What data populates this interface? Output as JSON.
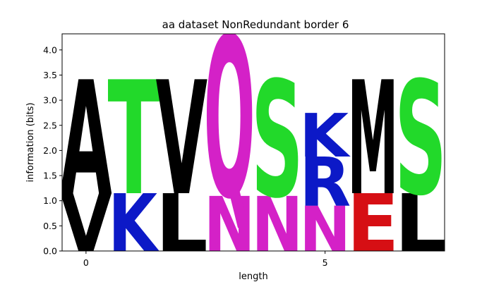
{
  "chart_data": {
    "type": "sequence-logo",
    "title": "aa dataset NonRedundant border 6",
    "xlabel": "length",
    "ylabel": "information (bits)",
    "xlim": [
      -0.5,
      7.5
    ],
    "ylim": [
      0,
      4.32
    ],
    "xticks": [
      0,
      5
    ],
    "yticks": [
      0.0,
      0.5,
      1.0,
      1.5,
      2.0,
      2.5,
      3.0,
      3.5,
      4.0
    ],
    "positions": [
      {
        "x": 0,
        "letters": [
          {
            "letter": "V",
            "bottom": 0.0,
            "top": 1.15,
            "color": "#000000"
          },
          {
            "letter": "A",
            "bottom": 1.15,
            "top": 3.42,
            "color": "#000000"
          }
        ]
      },
      {
        "x": 1,
        "letters": [
          {
            "letter": "K",
            "bottom": 0.0,
            "top": 1.15,
            "color": "#0c19c7"
          },
          {
            "letter": "T",
            "bottom": 1.15,
            "top": 3.42,
            "color": "#22d92a"
          }
        ]
      },
      {
        "x": 2,
        "letters": [
          {
            "letter": "L",
            "bottom": 0.0,
            "top": 1.15,
            "color": "#000000"
          },
          {
            "letter": "V",
            "bottom": 1.15,
            "top": 3.42,
            "color": "#000000"
          }
        ]
      },
      {
        "x": 3,
        "letters": [
          {
            "letter": "N",
            "bottom": 0.0,
            "top": 1.1,
            "color": "#d421c7"
          },
          {
            "letter": "Q",
            "bottom": 1.1,
            "top": 4.3,
            "color": "#d421c7"
          }
        ]
      },
      {
        "x": 4,
        "letters": [
          {
            "letter": "N",
            "bottom": 0.0,
            "top": 1.1,
            "color": "#d421c7"
          },
          {
            "letter": "S",
            "bottom": 1.1,
            "top": 3.42,
            "color": "#22d92a"
          }
        ]
      },
      {
        "x": 5,
        "letters": [
          {
            "letter": "N",
            "bottom": 0.0,
            "top": 0.9,
            "color": "#d421c7"
          },
          {
            "letter": "R",
            "bottom": 0.9,
            "top": 1.88,
            "color": "#0c19c7"
          },
          {
            "letter": "K",
            "bottom": 1.88,
            "top": 2.75,
            "color": "#0c19c7"
          }
        ]
      },
      {
        "x": 6,
        "letters": [
          {
            "letter": "E",
            "bottom": 0.0,
            "top": 1.15,
            "color": "#d60f14"
          },
          {
            "letter": "M",
            "bottom": 1.15,
            "top": 3.42,
            "color": "#000000"
          }
        ]
      },
      {
        "x": 7,
        "letters": [
          {
            "letter": "L",
            "bottom": 0.0,
            "top": 1.15,
            "color": "#000000"
          },
          {
            "letter": "S",
            "bottom": 1.15,
            "top": 3.42,
            "color": "#22d92a"
          }
        ]
      }
    ]
  }
}
